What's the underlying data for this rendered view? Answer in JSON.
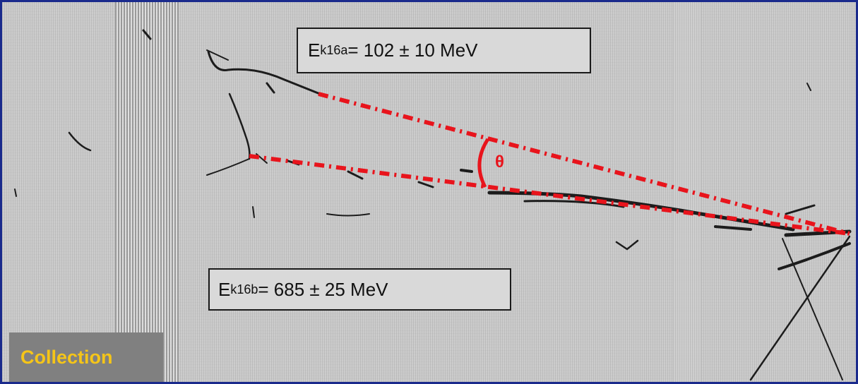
{
  "labels": {
    "energy_a": {
      "prefix": "E",
      "sub": "k16a",
      "value": " = 102 ± 10 MeV"
    },
    "energy_b": {
      "prefix": "E",
      "sub": "k16b",
      "value": " = 685 ± 25 MeV"
    },
    "angle_symbol": "θ",
    "panel_label": "Collection"
  },
  "colors": {
    "border": "#1a2a8c",
    "annotation_red": "#e8141c",
    "panel_label_text": "#f5c518",
    "panel_label_bg": "#808080",
    "background_gray": "#c9c9c9"
  }
}
